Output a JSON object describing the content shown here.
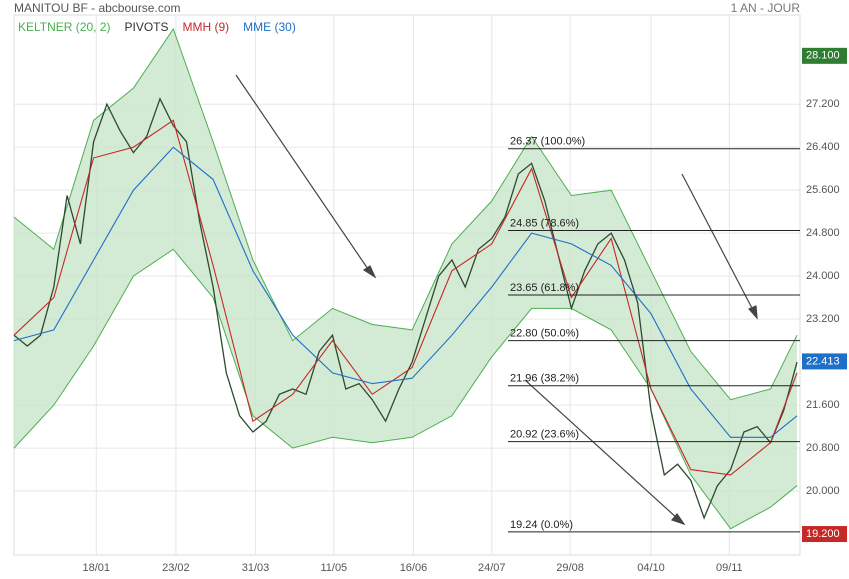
{
  "chart_data": {
    "type": "stock",
    "title": "MANITOU BF - abcbourse.com",
    "period": "1 AN - JOUR",
    "legend": [
      {
        "name": "KELTNER (20, 2)",
        "color": "#4caf50"
      },
      {
        "name": "PIVOTS",
        "color": "#333333"
      },
      {
        "name": "MMH (9)",
        "color": "#c62828"
      },
      {
        "name": "MME (30)",
        "color": "#1e6fc8"
      }
    ],
    "xlim": [
      0,
      59
    ],
    "xticks": [
      {
        "value": 6.2,
        "label": "18/01"
      },
      {
        "value": 12.2,
        "label": "23/02"
      },
      {
        "value": 18.2,
        "label": "31/03"
      },
      {
        "value": 24.1,
        "label": "11/05"
      },
      {
        "value": 30.1,
        "label": "16/06"
      },
      {
        "value": 36.0,
        "label": "24/07"
      },
      {
        "value": 41.9,
        "label": "29/08"
      },
      {
        "value": 48.0,
        "label": "04/10"
      },
      {
        "value": 53.9,
        "label": "09/11"
      }
    ],
    "ylim": [
      18.81,
      28.86
    ],
    "yticks": [
      {
        "value": 20.0,
        "label": "20.000"
      },
      {
        "value": 20.8,
        "label": "20.800"
      },
      {
        "value": 21.6,
        "label": "21.600"
      },
      {
        "value": 23.2,
        "label": "23.200"
      },
      {
        "value": 24.0,
        "label": "24.000"
      },
      {
        "value": 24.8,
        "label": "24.800"
      },
      {
        "value": 25.6,
        "label": "25.600"
      },
      {
        "value": 26.4,
        "label": "26.400"
      },
      {
        "value": 27.2,
        "label": "27.200"
      }
    ],
    "grid": true,
    "price": {
      "color": "#2e4a2e",
      "x": [
        0,
        1,
        2,
        3,
        4,
        5,
        6,
        7,
        8,
        9,
        10,
        11,
        12,
        13,
        14,
        15,
        16,
        17,
        18,
        19,
        20,
        21,
        22,
        23,
        24,
        25,
        26,
        27,
        28,
        29,
        30,
        31,
        32,
        33,
        34,
        35,
        36,
        37,
        38,
        39,
        40,
        41,
        42,
        43,
        44,
        45,
        46,
        47,
        48,
        49,
        50,
        51,
        52,
        53,
        54,
        55,
        56,
        57,
        58,
        59
      ],
      "values": [
        22.9,
        22.7,
        22.9,
        23.8,
        25.5,
        24.6,
        26.5,
        27.2,
        26.7,
        26.3,
        26.6,
        27.3,
        26.8,
        26.5,
        25.0,
        23.8,
        22.2,
        21.4,
        21.1,
        21.3,
        21.8,
        21.9,
        21.8,
        22.6,
        22.9,
        21.9,
        22.0,
        21.7,
        21.3,
        21.9,
        22.4,
        23.2,
        24.0,
        24.3,
        23.8,
        24.5,
        24.7,
        25.1,
        25.9,
        26.1,
        25.4,
        24.4,
        23.4,
        24.1,
        24.6,
        24.8,
        24.3,
        23.5,
        21.5,
        20.3,
        20.5,
        20.2,
        19.5,
        20.1,
        20.4,
        21.1,
        21.2,
        20.9,
        21.5,
        22.4
      ]
    },
    "keltner": {
      "color": "#4caf50",
      "fill": "#c8e6c9",
      "x": [
        0,
        3,
        6,
        9,
        12,
        15,
        18,
        21,
        24,
        27,
        30,
        33,
        36,
        39,
        42,
        45,
        48,
        51,
        54,
        57,
        59
      ],
      "upper": [
        25.1,
        24.5,
        26.9,
        27.5,
        28.6,
        26.5,
        24.3,
        22.8,
        23.4,
        23.1,
        23.0,
        24.6,
        25.4,
        26.6,
        25.5,
        25.6,
        24.1,
        22.6,
        21.7,
        21.9,
        22.9
      ],
      "lower": [
        20.8,
        21.6,
        22.7,
        24.0,
        24.5,
        23.6,
        21.4,
        20.8,
        21.0,
        20.9,
        21.0,
        21.4,
        22.5,
        23.4,
        23.4,
        23.0,
        21.9,
        20.3,
        19.3,
        19.7,
        20.1
      ]
    },
    "series": [
      {
        "name": "MMH (9)",
        "color": "#c62828",
        "x": [
          0,
          3,
          6,
          9,
          12,
          15,
          18,
          21,
          24,
          27,
          30,
          33,
          36,
          39,
          42,
          45,
          48,
          51,
          54,
          57,
          59
        ],
        "values": [
          22.9,
          23.6,
          26.2,
          26.4,
          26.9,
          24.2,
          21.3,
          21.8,
          22.8,
          21.8,
          22.3,
          24.1,
          24.6,
          26.0,
          23.6,
          24.7,
          21.9,
          20.4,
          20.3,
          20.9,
          22.2
        ]
      },
      {
        "name": "MME (30)",
        "color": "#1e6fc8",
        "x": [
          0,
          3,
          6,
          9,
          12,
          15,
          18,
          21,
          24,
          27,
          30,
          33,
          36,
          39,
          42,
          45,
          48,
          51,
          54,
          57,
          59
        ],
        "values": [
          22.8,
          23.0,
          24.3,
          25.6,
          26.4,
          25.8,
          24.1,
          22.9,
          22.2,
          22.0,
          22.1,
          22.9,
          23.8,
          24.8,
          24.6,
          24.2,
          23.3,
          21.9,
          21.0,
          21.0,
          21.4
        ]
      }
    ],
    "fibonacci": [
      {
        "value": 26.37,
        "label": "26.37  (100.0%)"
      },
      {
        "value": 24.85,
        "label": "24.85  (78.6%)"
      },
      {
        "value": 23.65,
        "label": "23.65  (61.8%)"
      },
      {
        "value": 22.8,
        "label": "22.80  (50.0%)"
      },
      {
        "value": 21.96,
        "label": "21.96  (38.2%)"
      },
      {
        "value": 20.92,
        "label": "20.92  (23.6%)"
      },
      {
        "value": 19.24,
        "label": "19.24  (0.0%)"
      }
    ],
    "price_tags": [
      {
        "value": 28.1,
        "label": "28.100",
        "color": "#2e7d32"
      },
      {
        "value": 22.413,
        "label": "22.413",
        "color": "#1e6fc8"
      },
      {
        "value": 19.2,
        "label": "19.200",
        "color": "#c62828"
      }
    ]
  }
}
